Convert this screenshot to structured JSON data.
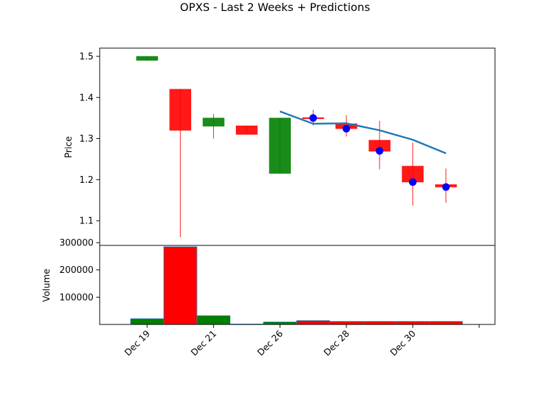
{
  "chart_data": [
    {
      "type": "candlestick",
      "title": "OPXS - Last 2 Weeks + Predictions",
      "ylabel": "Price",
      "ylim": [
        1.04,
        1.52
      ],
      "yticks": [
        "1.1",
        "1.2",
        "1.3",
        "1.4",
        "1.5"
      ],
      "up_color": "#008000",
      "down_color": "#ff0000",
      "candles": [
        {
          "x": 0,
          "open": 1.49,
          "high": 1.5,
          "low": 1.49,
          "close": 1.5
        },
        {
          "x": 1,
          "open": 1.42,
          "high": 1.42,
          "low": 1.06,
          "close": 1.32
        },
        {
          "x": 2,
          "open": 1.33,
          "high": 1.36,
          "low": 1.3,
          "close": 1.35
        },
        {
          "x": 3,
          "open": 1.331,
          "high": 1.331,
          "low": 1.31,
          "close": 1.31
        },
        {
          "x": 4,
          "open": 1.215,
          "high": 1.35,
          "low": 1.215,
          "close": 1.35
        },
        {
          "x": 5,
          "open": 1.351,
          "high": 1.37,
          "low": 1.332,
          "close": 1.348
        },
        {
          "x": 6,
          "open": 1.336,
          "high": 1.357,
          "low": 1.305,
          "close": 1.324
        },
        {
          "x": 7,
          "open": 1.296,
          "high": 1.343,
          "low": 1.225,
          "close": 1.269
        },
        {
          "x": 8,
          "open": 1.233,
          "high": 1.29,
          "low": 1.137,
          "close": 1.194
        },
        {
          "x": 9,
          "open": 1.188,
          "high": 1.227,
          "low": 1.144,
          "close": 1.182
        }
      ],
      "prediction_line": {
        "color": "#1f77b4",
        "points": [
          [
            4,
            1.366
          ],
          [
            5,
            1.336
          ],
          [
            6,
            1.337
          ],
          [
            7,
            1.32
          ],
          [
            8,
            1.297
          ],
          [
            9,
            1.264
          ]
        ]
      },
      "prediction_markers": {
        "color": "#0000ff",
        "points": [
          [
            5,
            1.35
          ],
          [
            6,
            1.324
          ],
          [
            7,
            1.27
          ],
          [
            8,
            1.194
          ],
          [
            9,
            1.182
          ]
        ]
      }
    },
    {
      "type": "bar",
      "ylabel": "Volume",
      "ylim": [
        0,
        290000
      ],
      "yticks": [
        "100000",
        "200000",
        "300000"
      ],
      "xtick_labels": [
        "Dec 19",
        "Dec 21",
        "Dec 26",
        "Dec 28",
        "Dec 30",
        ""
      ],
      "bars": [
        {
          "x": 0,
          "value": 21000,
          "color": "#008000"
        },
        {
          "x": 1,
          "value": 285000,
          "color": "#ff0000"
        },
        {
          "x": 2,
          "value": 32000,
          "color": "#008000"
        },
        {
          "x": 3,
          "value": 1500,
          "color": "#ff0000"
        },
        {
          "x": 4,
          "value": 9000,
          "color": "#008000"
        },
        {
          "x": 5,
          "value": 14000,
          "color": "#ff0000"
        },
        {
          "x": 6,
          "value": 11000,
          "color": "#ff0000"
        },
        {
          "x": 7,
          "value": 11000,
          "color": "#ff0000"
        },
        {
          "x": 8,
          "value": 11000,
          "color": "#ff0000"
        },
        {
          "x": 9,
          "value": 11000,
          "color": "#ff0000"
        }
      ]
    }
  ]
}
